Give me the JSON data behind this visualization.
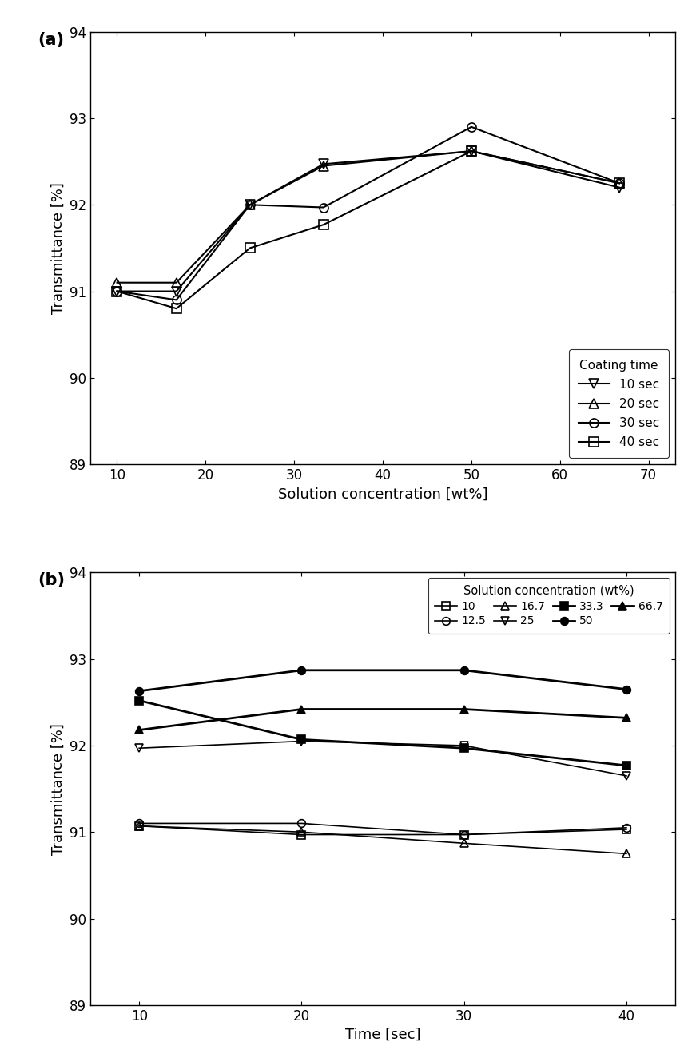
{
  "panel_a": {
    "title": "(a)",
    "xlabel": "Solution concentration [wt%]",
    "ylabel": "Transmittance [%]",
    "xlim": [
      7,
      73
    ],
    "ylim": [
      89,
      94
    ],
    "xticks": [
      10,
      20,
      30,
      40,
      50,
      60,
      70
    ],
    "yticks": [
      89,
      90,
      91,
      92,
      93,
      94
    ],
    "series": {
      "10 sec": {
        "x": [
          10,
          16.7,
          25,
          33.3,
          50,
          66.7
        ],
        "y": [
          91.0,
          91.0,
          92.0,
          92.47,
          92.62,
          92.2
        ],
        "marker": "v",
        "fillstyle": "none",
        "color": "#000000",
        "linewidth": 1.5,
        "markersize": 8
      },
      "20 sec": {
        "x": [
          10,
          16.7,
          25,
          33.3,
          50,
          66.7
        ],
        "y": [
          91.1,
          91.1,
          92.0,
          92.45,
          92.62,
          92.25
        ],
        "marker": "^",
        "fillstyle": "none",
        "color": "#000000",
        "linewidth": 1.5,
        "markersize": 8
      },
      "30 sec": {
        "x": [
          10,
          16.7,
          25,
          33.3,
          50,
          66.7
        ],
        "y": [
          91.0,
          90.9,
          92.0,
          91.97,
          92.9,
          92.25
        ],
        "marker": "o",
        "fillstyle": "none",
        "color": "#000000",
        "linewidth": 1.5,
        "markersize": 8
      },
      "40 sec": {
        "x": [
          10,
          16.7,
          25,
          33.3,
          50,
          66.7
        ],
        "y": [
          91.0,
          90.8,
          91.5,
          91.77,
          92.62,
          92.25
        ],
        "marker": "s",
        "fillstyle": "none",
        "color": "#000000",
        "linewidth": 1.5,
        "markersize": 8
      }
    },
    "legend_title": "Coating time",
    "legend_labels": [
      "10 sec",
      "20 sec",
      "30 sec",
      "40 sec"
    ],
    "legend_markers": [
      "v",
      "^",
      "o",
      "s"
    ]
  },
  "panel_b": {
    "title": "(b)",
    "xlabel": "Time [sec]",
    "ylabel": "Transmittance [%]",
    "xlim": [
      7,
      43
    ],
    "ylim": [
      89,
      94
    ],
    "xticks": [
      10,
      20,
      30,
      40
    ],
    "yticks": [
      89,
      90,
      91,
      92,
      93,
      94
    ],
    "series": {
      "10": {
        "x": [
          10,
          20,
          30,
          40
        ],
        "y": [
          91.07,
          90.97,
          90.97,
          91.03
        ],
        "marker": "s",
        "fillstyle": "none",
        "linewidth": 1.2,
        "markersize": 7,
        "bold": false
      },
      "12.5": {
        "x": [
          10,
          20,
          30,
          40
        ],
        "y": [
          91.1,
          91.1,
          90.97,
          91.05
        ],
        "marker": "o",
        "fillstyle": "none",
        "linewidth": 1.2,
        "markersize": 7,
        "bold": false
      },
      "16.7": {
        "x": [
          10,
          20,
          30,
          40
        ],
        "y": [
          91.07,
          91.0,
          90.87,
          90.75
        ],
        "marker": "^",
        "fillstyle": "none",
        "linewidth": 1.2,
        "markersize": 7,
        "bold": false
      },
      "25": {
        "x": [
          10,
          20,
          30,
          40
        ],
        "y": [
          91.97,
          92.05,
          92.0,
          91.65
        ],
        "marker": "v",
        "fillstyle": "none",
        "linewidth": 1.2,
        "markersize": 7,
        "bold": false
      },
      "33.3": {
        "x": [
          10,
          20,
          30,
          40
        ],
        "y": [
          92.52,
          92.07,
          91.97,
          91.77
        ],
        "marker": "s",
        "fillstyle": "full",
        "linewidth": 2.0,
        "markersize": 7,
        "bold": true
      },
      "50": {
        "x": [
          10,
          20,
          30,
          40
        ],
        "y": [
          92.63,
          92.87,
          92.87,
          92.65
        ],
        "marker": "o",
        "fillstyle": "full",
        "linewidth": 2.0,
        "markersize": 7,
        "bold": true
      },
      "66.7": {
        "x": [
          10,
          20,
          30,
          40
        ],
        "y": [
          92.18,
          92.42,
          92.42,
          92.32
        ],
        "marker": "^",
        "fillstyle": "full",
        "linewidth": 2.0,
        "markersize": 7,
        "bold": true
      }
    },
    "legend_title": "Solution concentration (wt%)",
    "legend_labels_row1": [
      "10",
      "12.5",
      "16.7",
      "25"
    ],
    "legend_labels_row2": [
      "33.3",
      "50",
      "66.7"
    ],
    "legend_markers_row1": [
      "s",
      "o",
      "^",
      "v"
    ],
    "legend_markers_row2": [
      "s",
      "o",
      "^"
    ],
    "legend_filled_row1": [
      false,
      false,
      false,
      false
    ],
    "legend_filled_row2": [
      true,
      true,
      true
    ]
  },
  "fig_width": 8.71,
  "fig_height": 13.24,
  "dpi": 100
}
